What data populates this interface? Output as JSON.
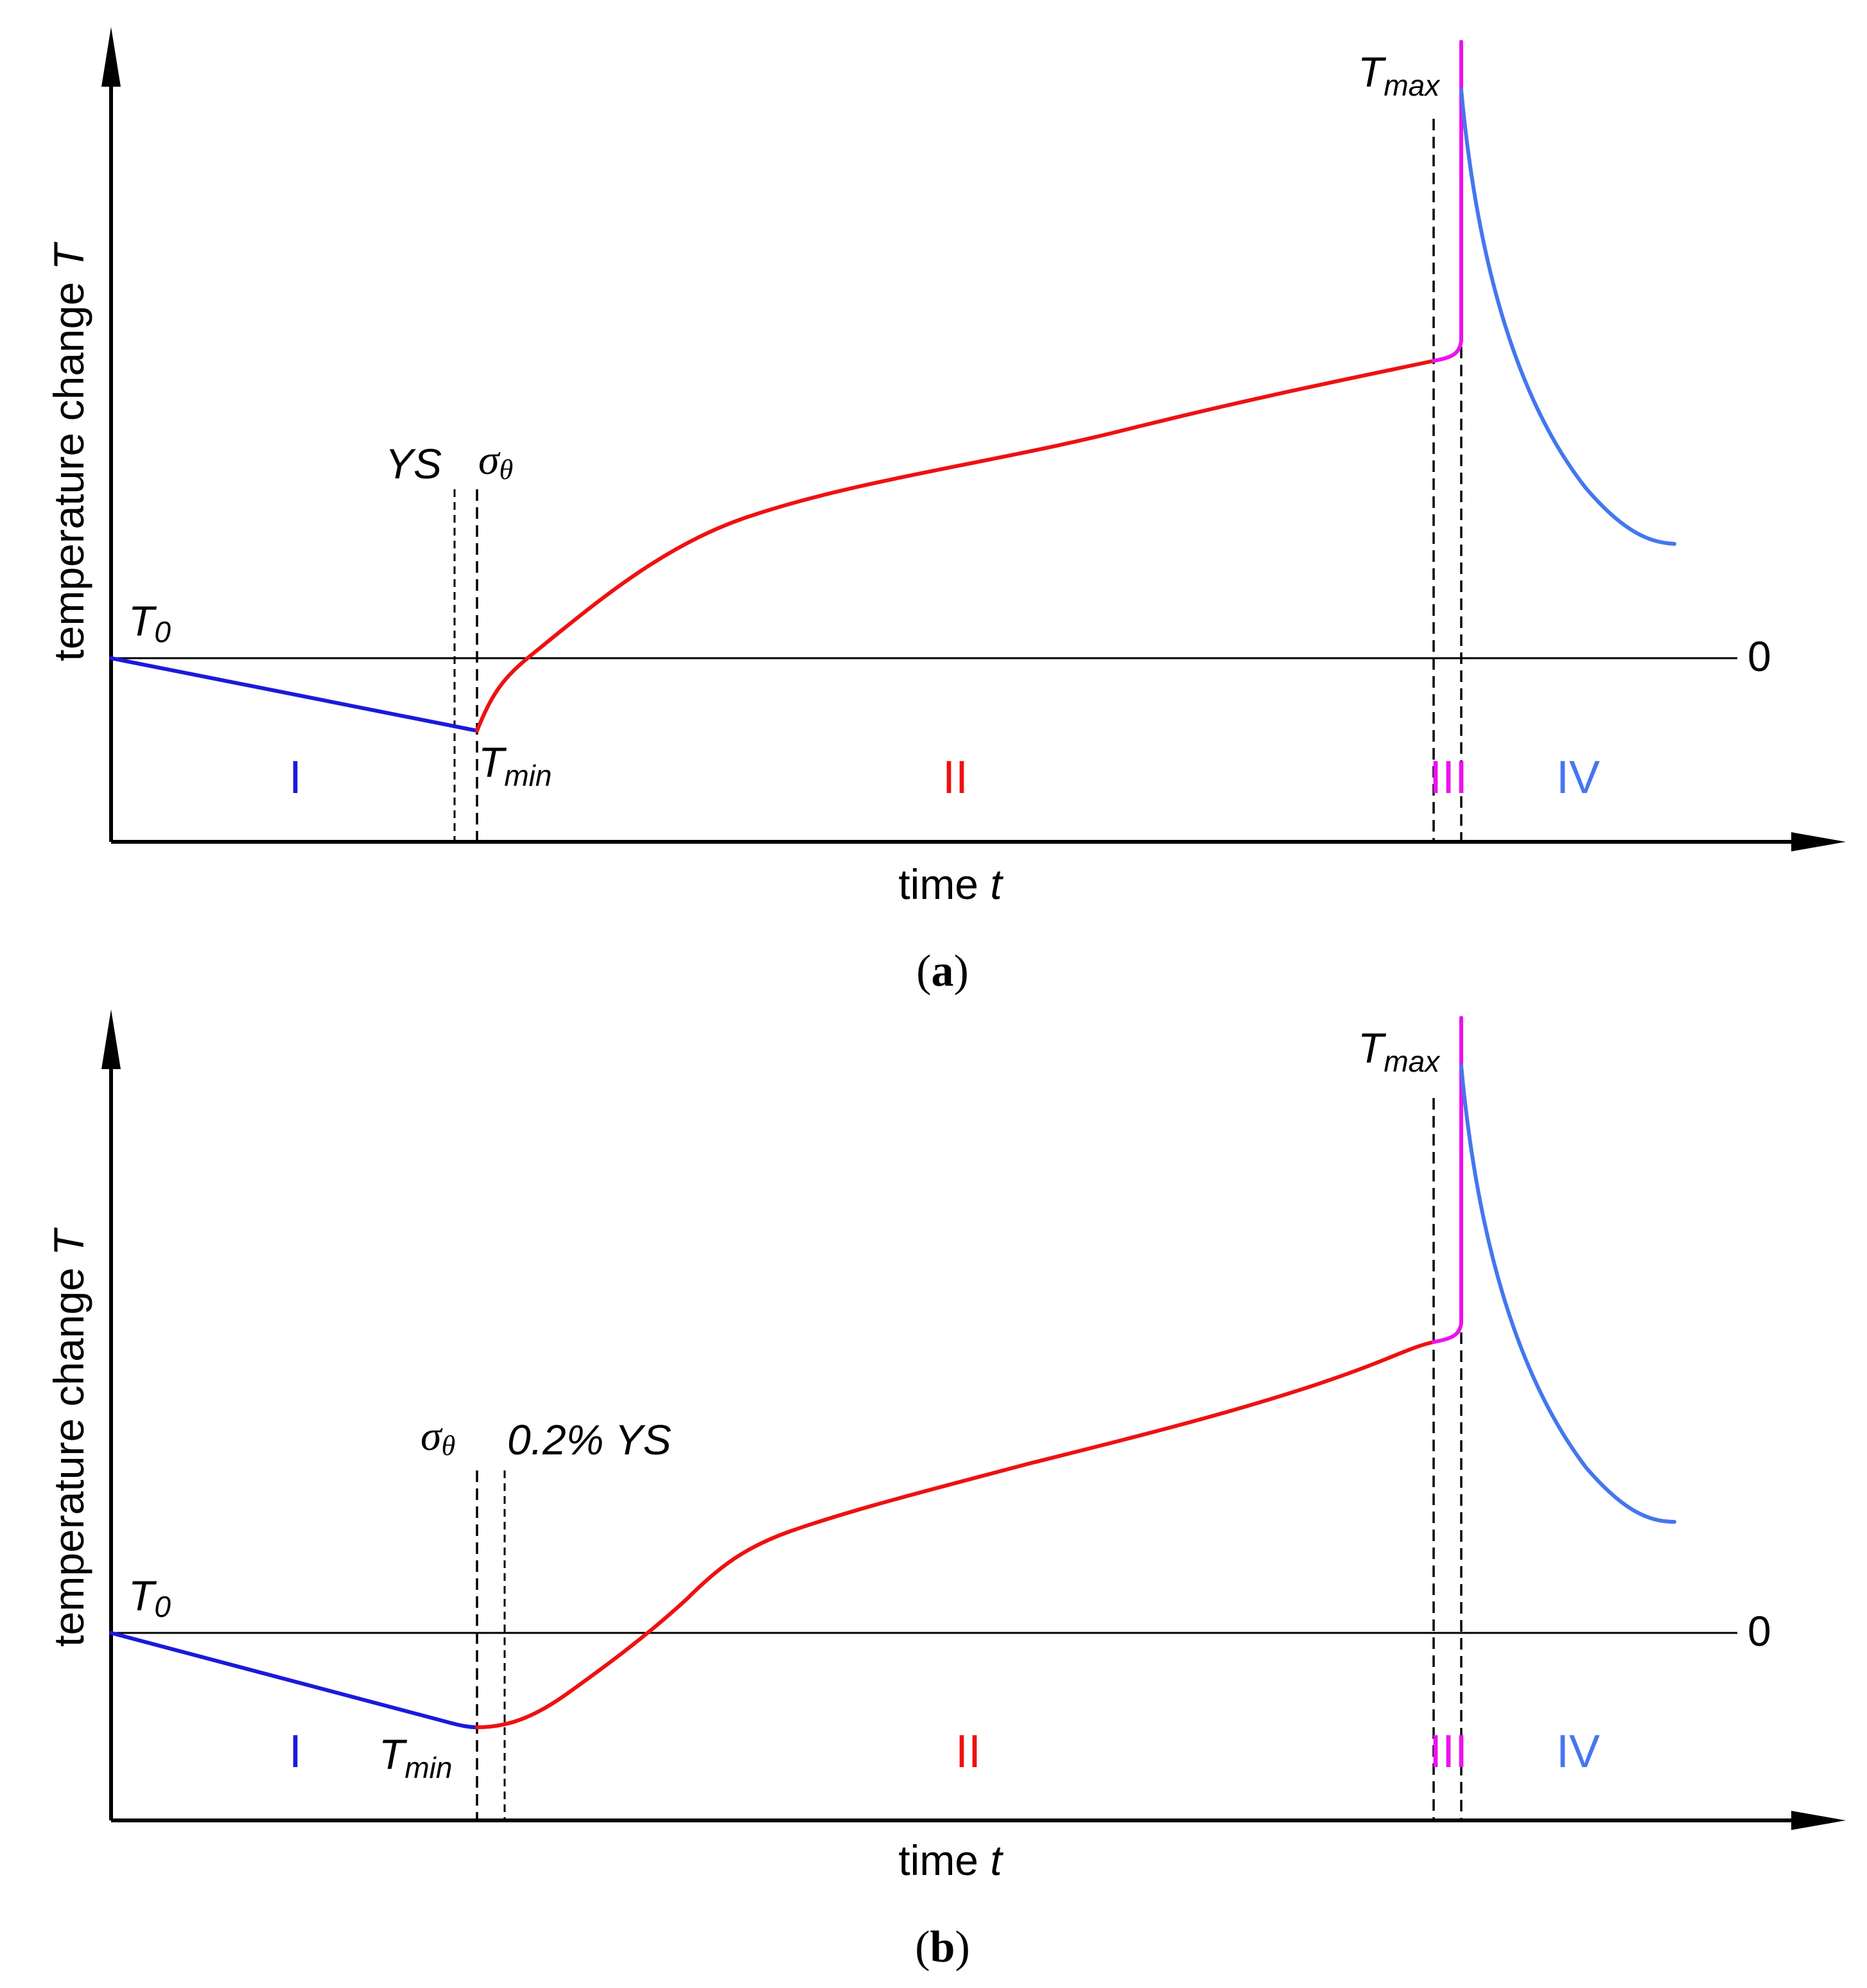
{
  "colors": {
    "stage1": "#1a1adb",
    "stage2": "#ee1111",
    "stage3": "#ee11ee",
    "stage4": "#4477ee",
    "axis": "#000000"
  },
  "panel_a": {
    "y_axis_label_main": "temperature change ",
    "y_axis_label_var": "T",
    "x_axis_label_main": "time ",
    "x_axis_label_var": "t",
    "zero_label": "0",
    "t0_base": "T",
    "t0_sub": "0",
    "tmin_base": "T",
    "tmin_sub": "min",
    "tmax_base": "T",
    "tmax_sub": "max",
    "ys_label": "YS",
    "sigma_base": "σ",
    "sigma_sub": "θ",
    "stage_1": "I",
    "stage_2": "II",
    "stage_3": "III",
    "stage_4": "IV",
    "caption_open": "(",
    "caption_letter": "a",
    "caption_close": ")"
  },
  "panel_b": {
    "y_axis_label_main": "temperature change ",
    "y_axis_label_var": "T",
    "x_axis_label_main": "time ",
    "x_axis_label_var": "t",
    "zero_label": "0",
    "t0_base": "T",
    "t0_sub": "0",
    "tmin_base": "T",
    "tmin_sub": "min",
    "tmax_base": "T",
    "tmax_sub": "max",
    "ys_label": "0.2% YS",
    "sigma_base": "σ",
    "sigma_sub": "θ",
    "stage_1": "I",
    "stage_2": "II",
    "stage_3": "III",
    "stage_4": "IV",
    "caption_open": "(",
    "caption_letter": "b",
    "caption_close": ")"
  }
}
